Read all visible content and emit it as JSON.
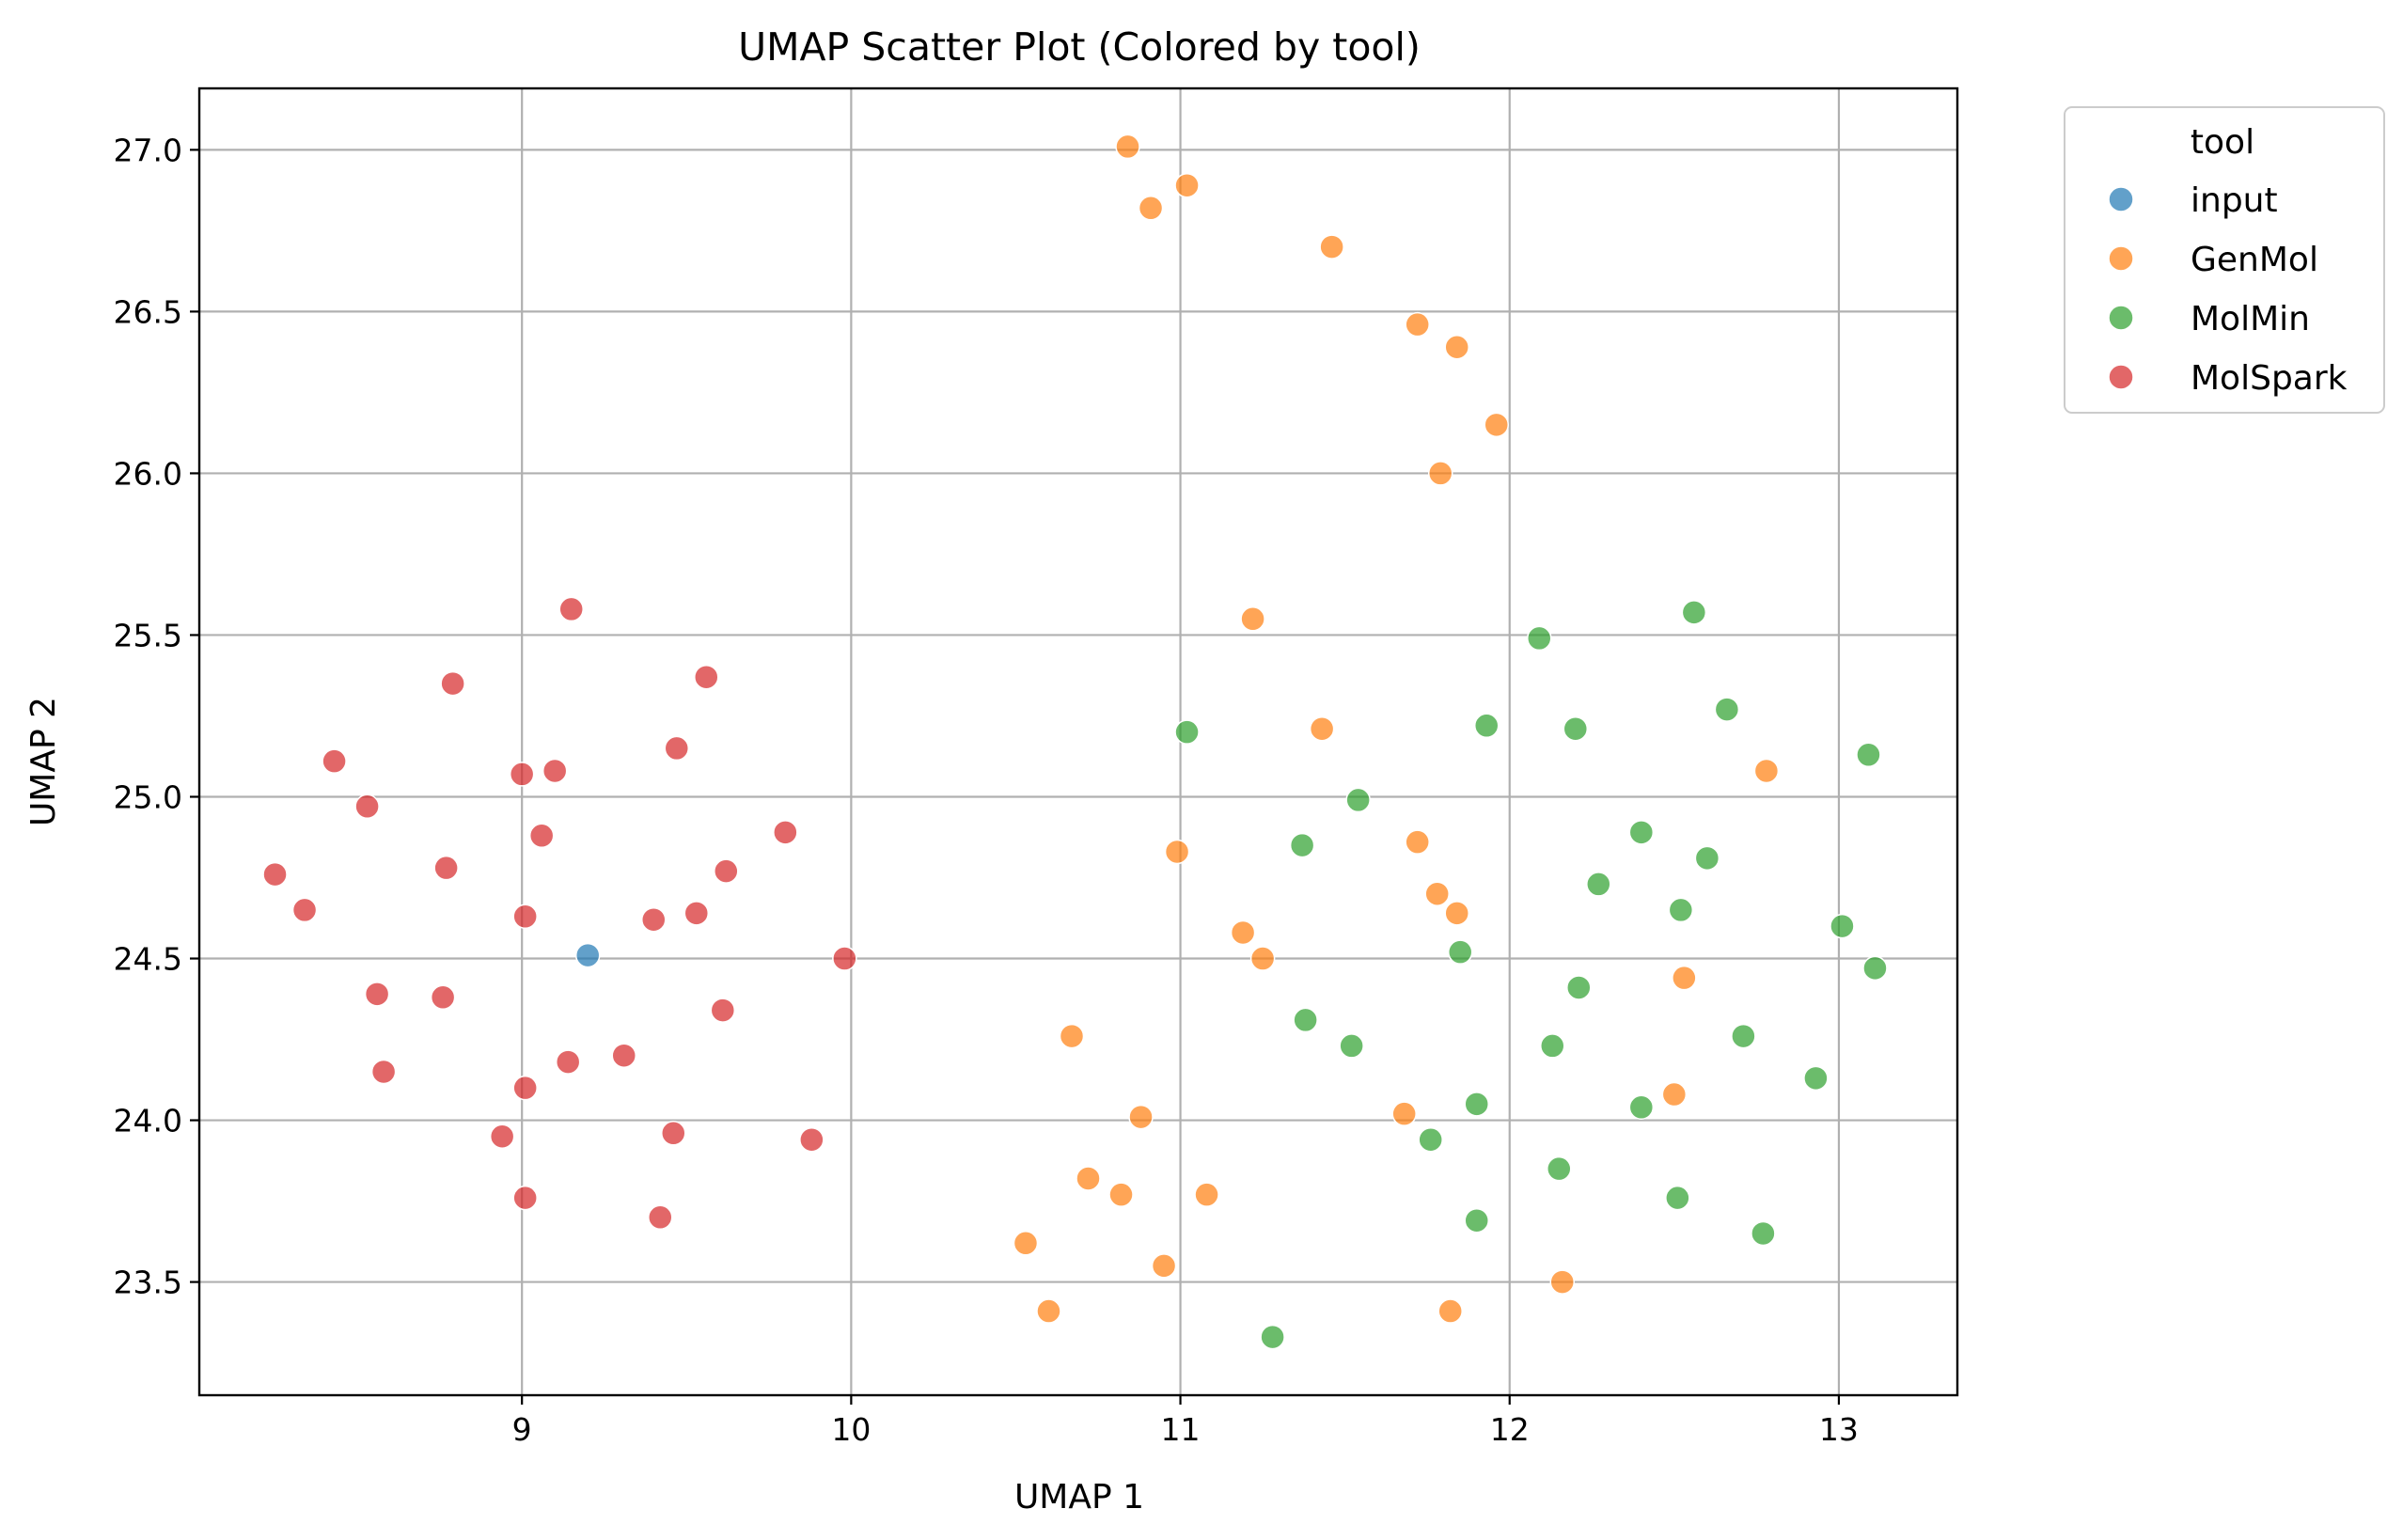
{
  "chart_data": {
    "type": "scatter",
    "title": "UMAP Scatter Plot (Colored by tool)",
    "xlabel": "UMAP 1",
    "ylabel": "UMAP 2",
    "xlim": [
      8.02,
      13.36
    ],
    "ylim": [
      23.15,
      27.19
    ],
    "xticks": [
      9,
      10,
      11,
      12,
      13
    ],
    "xtick_labels": [
      "9",
      "10",
      "11",
      "12",
      "13"
    ],
    "yticks": [
      23.5,
      24.0,
      24.5,
      25.0,
      25.5,
      26.0,
      26.5,
      27.0
    ],
    "ytick_labels": [
      "23.5",
      "24.0",
      "24.5",
      "25.0",
      "25.5",
      "26.0",
      "26.5",
      "27.0"
    ],
    "grid": true,
    "legend": {
      "title": "tool",
      "placement": "outside-right-top"
    },
    "series": [
      {
        "name": "input",
        "color": "#1f77b4",
        "points": [
          [
            9.2,
            24.51
          ]
        ]
      },
      {
        "name": "GenMol",
        "color": "#ff7f0e",
        "points": [
          [
            10.84,
            27.01
          ],
          [
            10.91,
            26.82
          ],
          [
            11.02,
            26.89
          ],
          [
            11.46,
            26.7
          ],
          [
            11.72,
            26.46
          ],
          [
            11.84,
            26.39
          ],
          [
            11.96,
            26.15
          ],
          [
            11.79,
            26.0
          ],
          [
            11.22,
            25.55
          ],
          [
            11.43,
            25.21
          ],
          [
            12.78,
            25.08
          ],
          [
            10.99,
            24.83
          ],
          [
            11.72,
            24.86
          ],
          [
            11.78,
            24.7
          ],
          [
            11.84,
            24.64
          ],
          [
            11.19,
            24.58
          ],
          [
            11.25,
            24.5
          ],
          [
            12.53,
            24.44
          ],
          [
            10.67,
            24.26
          ],
          [
            12.5,
            24.08
          ],
          [
            10.88,
            24.01
          ],
          [
            11.68,
            24.02
          ],
          [
            10.72,
            23.82
          ],
          [
            10.82,
            23.77
          ],
          [
            11.08,
            23.77
          ],
          [
            10.53,
            23.62
          ],
          [
            10.95,
            23.55
          ],
          [
            12.16,
            23.5
          ],
          [
            10.6,
            23.41
          ],
          [
            11.82,
            23.41
          ]
        ]
      },
      {
        "name": "MolMin",
        "color": "#2ca02c",
        "points": [
          [
            12.09,
            25.49
          ],
          [
            12.56,
            25.57
          ],
          [
            11.02,
            25.2
          ],
          [
            11.93,
            25.22
          ],
          [
            12.2,
            25.21
          ],
          [
            12.66,
            25.27
          ],
          [
            13.09,
            25.13
          ],
          [
            11.54,
            24.99
          ],
          [
            11.37,
            24.85
          ],
          [
            12.4,
            24.89
          ],
          [
            12.6,
            24.81
          ],
          [
            12.27,
            24.73
          ],
          [
            12.52,
            24.65
          ],
          [
            13.01,
            24.6
          ],
          [
            11.85,
            24.52
          ],
          [
            13.11,
            24.47
          ],
          [
            12.21,
            24.41
          ],
          [
            11.38,
            24.31
          ],
          [
            11.52,
            24.23
          ],
          [
            12.13,
            24.23
          ],
          [
            12.71,
            24.26
          ],
          [
            12.93,
            24.13
          ],
          [
            11.9,
            24.05
          ],
          [
            12.4,
            24.04
          ],
          [
            11.76,
            23.94
          ],
          [
            12.15,
            23.85
          ],
          [
            12.51,
            23.76
          ],
          [
            11.9,
            23.69
          ],
          [
            12.77,
            23.65
          ],
          [
            11.28,
            23.33
          ]
        ]
      },
      {
        "name": "MolSpark",
        "color": "#d62728",
        "points": [
          [
            9.15,
            25.58
          ],
          [
            8.79,
            25.35
          ],
          [
            9.56,
            25.37
          ],
          [
            8.43,
            25.11
          ],
          [
            9.0,
            25.07
          ],
          [
            9.1,
            25.08
          ],
          [
            9.47,
            25.15
          ],
          [
            8.53,
            24.97
          ],
          [
            9.06,
            24.88
          ],
          [
            9.8,
            24.89
          ],
          [
            8.25,
            24.76
          ],
          [
            8.77,
            24.78
          ],
          [
            9.62,
            24.77
          ],
          [
            8.34,
            24.65
          ],
          [
            9.01,
            24.63
          ],
          [
            9.4,
            24.62
          ],
          [
            9.53,
            24.64
          ],
          [
            9.98,
            24.5
          ],
          [
            8.56,
            24.39
          ],
          [
            8.76,
            24.38
          ],
          [
            9.61,
            24.34
          ],
          [
            9.14,
            24.18
          ],
          [
            9.31,
            24.2
          ],
          [
            8.58,
            24.15
          ],
          [
            9.01,
            24.1
          ],
          [
            8.94,
            23.95
          ],
          [
            9.46,
            23.96
          ],
          [
            9.88,
            23.94
          ],
          [
            9.01,
            23.76
          ],
          [
            9.42,
            23.7
          ]
        ]
      }
    ]
  }
}
